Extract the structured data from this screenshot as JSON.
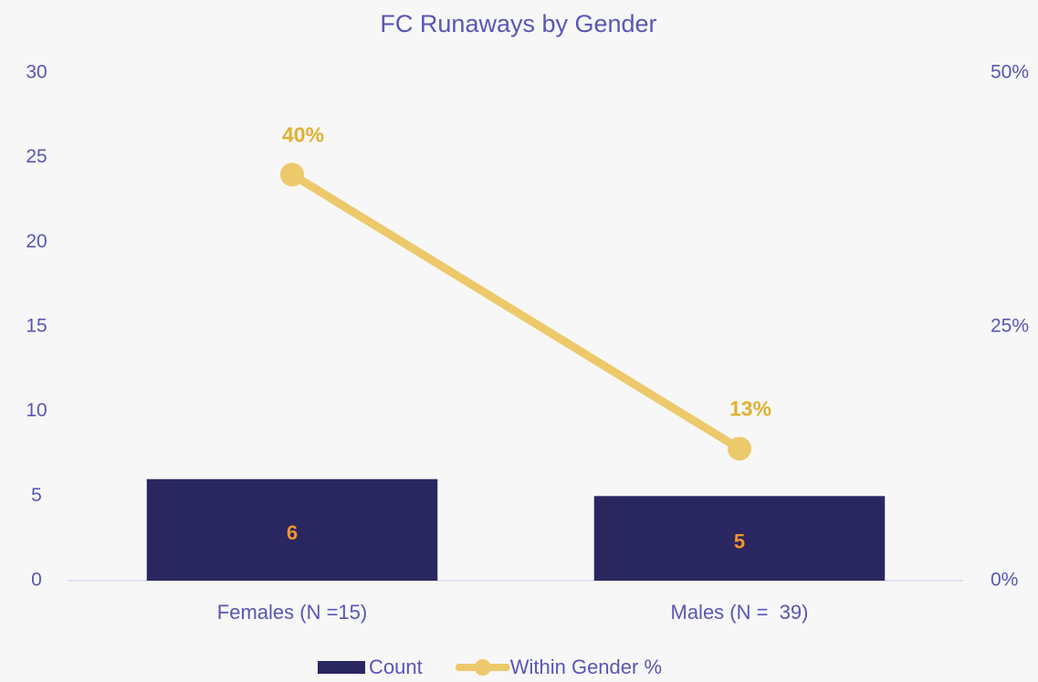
{
  "chart_data": {
    "type": "bar-line",
    "title": "FC Runaways by Gender",
    "categories": [
      "Females (N =15)",
      "Males (N =  39)"
    ],
    "series": [
      {
        "name": "Count",
        "type": "bar",
        "color": "#2a2760",
        "values": [
          6,
          5
        ]
      },
      {
        "name": "Within Gender %",
        "type": "line",
        "axis": "y2",
        "color": "#ecc96a",
        "values": [
          40,
          13
        ],
        "value_labels": [
          "40%",
          "13%"
        ]
      }
    ],
    "ylim": [
      0,
      30
    ],
    "yticks": [
      0,
      5,
      10,
      15,
      20,
      25,
      30
    ],
    "y2lim": [
      0,
      50
    ],
    "y2ticks": [
      {
        "value": 0,
        "label": "0%"
      },
      {
        "value": 25,
        "label": "25%"
      },
      {
        "value": 50,
        "label": "50%"
      }
    ],
    "grid": false,
    "legend": "bottom"
  }
}
